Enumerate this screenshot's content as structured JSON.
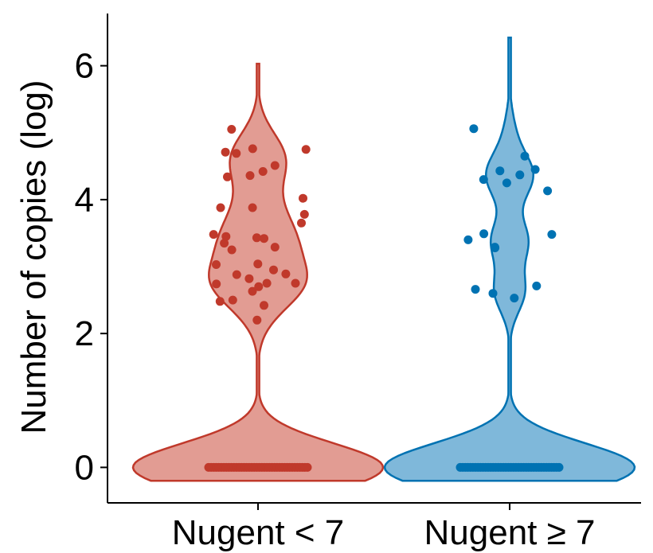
{
  "chart_data": {
    "type": "violin",
    "title": "",
    "xlabel": "",
    "ylabel": "Number of copies (log)",
    "ylim": [
      -0.53,
      6.78
    ],
    "yticks": [
      0,
      2,
      4,
      6
    ],
    "grid": false,
    "legend": "none",
    "categories": [
      "Nugent < 7",
      "Nugent ≥ 7"
    ],
    "series": [
      {
        "category": "Nugent < 7",
        "color": "#C0392B",
        "fill": "#E29C93",
        "range": [
          -0.2,
          6.03
        ],
        "zero_count": 40,
        "points": [
          2.2,
          2.42,
          2.48,
          2.5,
          2.63,
          2.7,
          2.74,
          2.75,
          2.75,
          2.82,
          2.88,
          2.89,
          2.95,
          3.03,
          3.04,
          3.25,
          3.29,
          3.35,
          3.42,
          3.43,
          3.45,
          3.48,
          3.65,
          3.78,
          3.88,
          3.88,
          4.02,
          4.34,
          4.36,
          4.42,
          4.51,
          4.69,
          4.71,
          4.75,
          4.76,
          5.05
        ]
      },
      {
        "category": "Nugent ≥ 7",
        "color": "#0072B2",
        "fill": "#7FB8DA",
        "range": [
          -0.2,
          6.42
        ],
        "zero_count": 40,
        "points": [
          2.53,
          2.6,
          2.66,
          2.71,
          3.28,
          3.29,
          3.4,
          3.48,
          3.49,
          4.13,
          4.25,
          4.3,
          4.37,
          4.43,
          4.45,
          4.65,
          5.06
        ]
      }
    ]
  }
}
